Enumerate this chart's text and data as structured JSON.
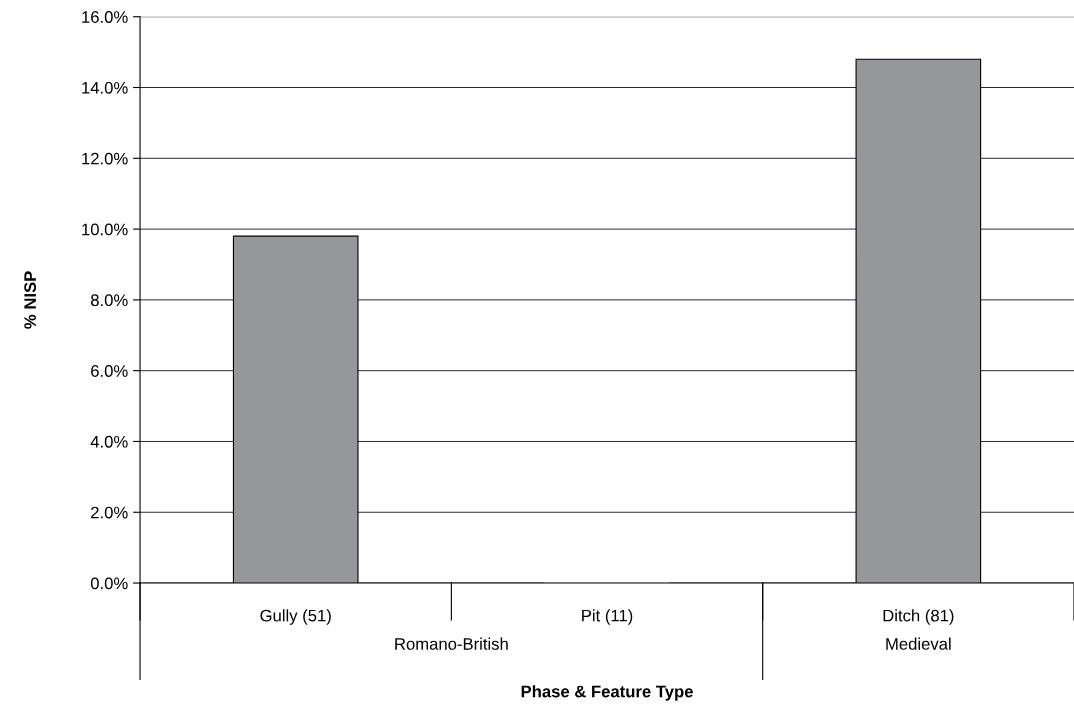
{
  "chart_data": {
    "type": "bar",
    "xlabel": "Phase & Feature Type",
    "ylabel": "% NISP",
    "categories": [
      "Gully (51)",
      "Pit (11)",
      "Ditch (81)"
    ],
    "values": [
      9.8,
      0,
      14.8
    ],
    "color": "#96979b",
    "ylim": [
      0,
      16
    ],
    "yticks": [
      {
        "value": 0,
        "label": "0.0%"
      },
      {
        "value": 2,
        "label": "2.0%"
      },
      {
        "value": 4,
        "label": "4.0%"
      },
      {
        "value": 6,
        "label": "6.0%"
      },
      {
        "value": 8,
        "label": "8.0%"
      },
      {
        "value": 10,
        "label": "10.0%"
      },
      {
        "value": 12,
        "label": "12.0%"
      },
      {
        "value": 14,
        "label": "14.0%"
      },
      {
        "value": 16,
        "label": "16.0%"
      }
    ],
    "grid": "y",
    "legend": false,
    "annotations": [
      "Romano-British",
      "Medieval"
    ]
  }
}
